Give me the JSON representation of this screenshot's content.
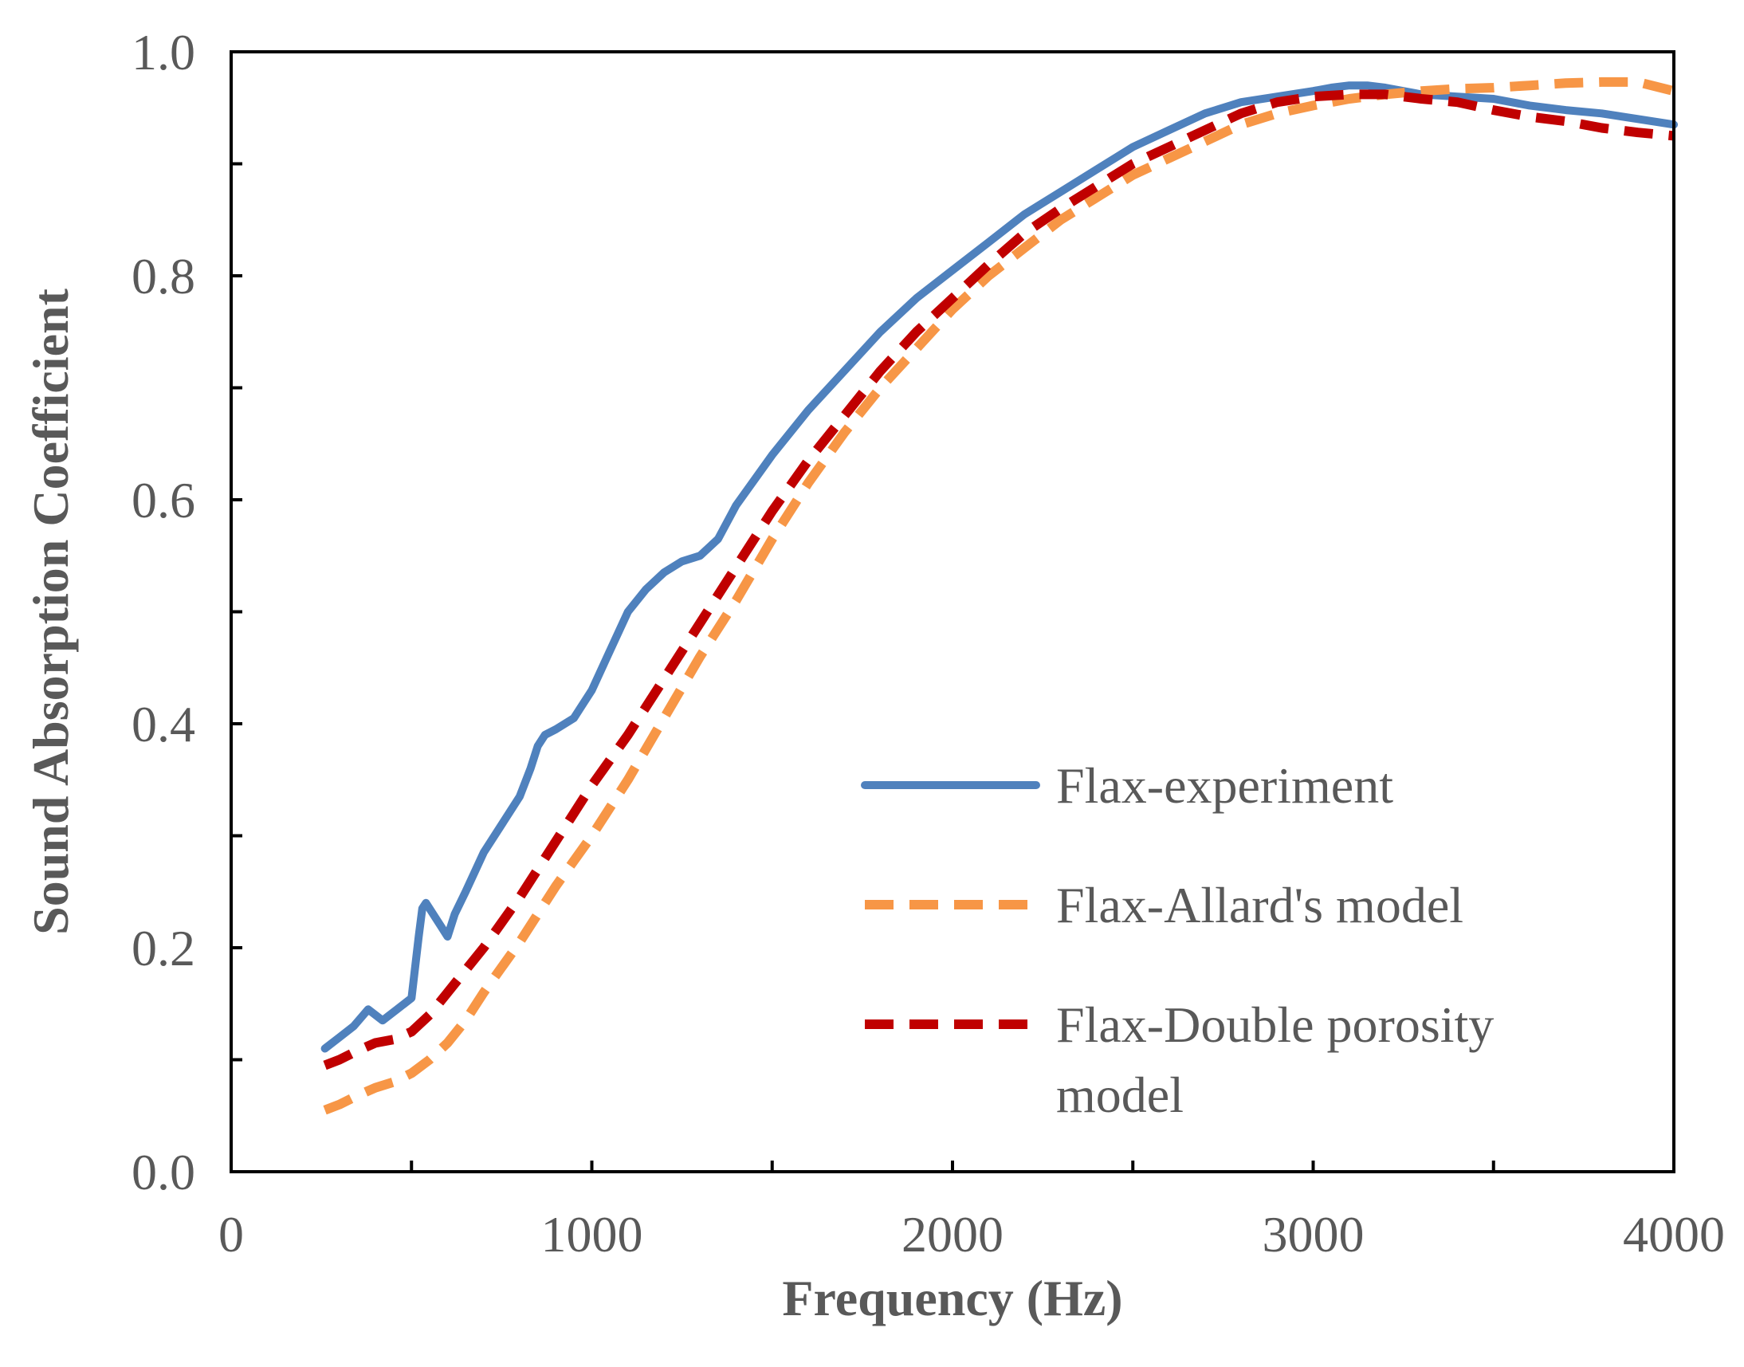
{
  "chart_data": {
    "type": "line",
    "title": "",
    "xlabel": "Frequency (Hz)",
    "ylabel": "Sound Absorption Coefficient",
    "xlim": [
      0,
      4000
    ],
    "ylim": [
      0.0,
      1.0
    ],
    "x_ticks": [
      0,
      1000,
      2000,
      3000,
      4000
    ],
    "x_tick_labels": [
      "0",
      "1000",
      "2000",
      "3000",
      "4000"
    ],
    "x_minor_ticks": [
      500,
      1500,
      2500,
      3500
    ],
    "y_ticks": [
      0.0,
      0.2,
      0.4,
      0.6,
      0.8,
      1.0
    ],
    "y_tick_labels": [
      "0.0",
      "0.2",
      "0.4",
      "0.6",
      "0.8",
      "1.0"
    ],
    "y_minor_ticks": [
      0.1,
      0.3,
      0.5,
      0.7,
      0.9
    ],
    "grid": false,
    "legend_position": "bottom-right",
    "series": [
      {
        "name": "Flax-experiment",
        "legend_lines": [
          "Flax-experiment"
        ],
        "color": "#4f81bd",
        "style": "solid",
        "x": [
          260,
          300,
          340,
          380,
          420,
          460,
          500,
          520,
          530,
          540,
          560,
          580,
          600,
          620,
          650,
          700,
          750,
          800,
          830,
          850,
          870,
          900,
          950,
          1000,
          1050,
          1100,
          1150,
          1200,
          1250,
          1300,
          1350,
          1400,
          1500,
          1600,
          1700,
          1800,
          1900,
          2000,
          2100,
          2200,
          2300,
          2400,
          2500,
          2600,
          2700,
          2800,
          2900,
          3000,
          3050,
          3100,
          3150,
          3200,
          3300,
          3400,
          3500,
          3600,
          3700,
          3800,
          3900,
          4000
        ],
        "y": [
          0.11,
          0.12,
          0.13,
          0.145,
          0.135,
          0.145,
          0.155,
          0.21,
          0.235,
          0.24,
          0.23,
          0.22,
          0.21,
          0.23,
          0.25,
          0.285,
          0.31,
          0.335,
          0.36,
          0.38,
          0.39,
          0.395,
          0.405,
          0.43,
          0.465,
          0.5,
          0.52,
          0.535,
          0.545,
          0.55,
          0.565,
          0.595,
          0.64,
          0.68,
          0.715,
          0.75,
          0.78,
          0.805,
          0.83,
          0.855,
          0.875,
          0.895,
          0.915,
          0.93,
          0.945,
          0.955,
          0.96,
          0.965,
          0.968,
          0.97,
          0.97,
          0.968,
          0.962,
          0.96,
          0.958,
          0.952,
          0.948,
          0.945,
          0.94,
          0.935
        ]
      },
      {
        "name": "Flax-Allard's model",
        "legend_lines": [
          "Flax-Allard's model"
        ],
        "color": "#f79646",
        "style": "dashed",
        "x": [
          260,
          300,
          350,
          400,
          450,
          500,
          550,
          600,
          650,
          700,
          800,
          900,
          1000,
          1100,
          1200,
          1300,
          1400,
          1500,
          1600,
          1700,
          1800,
          1900,
          2000,
          2100,
          2200,
          2300,
          2400,
          2500,
          2600,
          2700,
          2800,
          2900,
          3000,
          3100,
          3200,
          3300,
          3400,
          3500,
          3600,
          3700,
          3800,
          3900,
          4000
        ],
        "y": [
          0.055,
          0.06,
          0.068,
          0.075,
          0.08,
          0.088,
          0.1,
          0.115,
          0.135,
          0.16,
          0.205,
          0.255,
          0.3,
          0.35,
          0.405,
          0.46,
          0.51,
          0.565,
          0.615,
          0.66,
          0.7,
          0.735,
          0.77,
          0.8,
          0.825,
          0.85,
          0.87,
          0.89,
          0.905,
          0.92,
          0.935,
          0.945,
          0.952,
          0.958,
          0.962,
          0.965,
          0.967,
          0.968,
          0.97,
          0.972,
          0.973,
          0.973,
          0.965
        ]
      },
      {
        "name": "Flax-Double porosity model",
        "legend_lines": [
          "Flax-Double porosity",
          "model"
        ],
        "color": "#c00000",
        "style": "dashed",
        "x": [
          260,
          300,
          350,
          400,
          450,
          500,
          550,
          600,
          650,
          700,
          800,
          900,
          1000,
          1100,
          1200,
          1300,
          1400,
          1500,
          1600,
          1700,
          1800,
          1900,
          2000,
          2100,
          2200,
          2300,
          2400,
          2500,
          2600,
          2700,
          2800,
          2900,
          3000,
          3100,
          3200,
          3300,
          3400,
          3500,
          3600,
          3700,
          3800,
          3900,
          4000
        ],
        "y": [
          0.095,
          0.1,
          0.108,
          0.115,
          0.118,
          0.125,
          0.14,
          0.16,
          0.18,
          0.2,
          0.245,
          0.295,
          0.345,
          0.39,
          0.44,
          0.49,
          0.54,
          0.59,
          0.635,
          0.675,
          0.715,
          0.75,
          0.78,
          0.81,
          0.838,
          0.86,
          0.88,
          0.9,
          0.915,
          0.93,
          0.945,
          0.955,
          0.96,
          0.962,
          0.962,
          0.958,
          0.955,
          0.948,
          0.942,
          0.938,
          0.932,
          0.928,
          0.925
        ]
      }
    ]
  }
}
